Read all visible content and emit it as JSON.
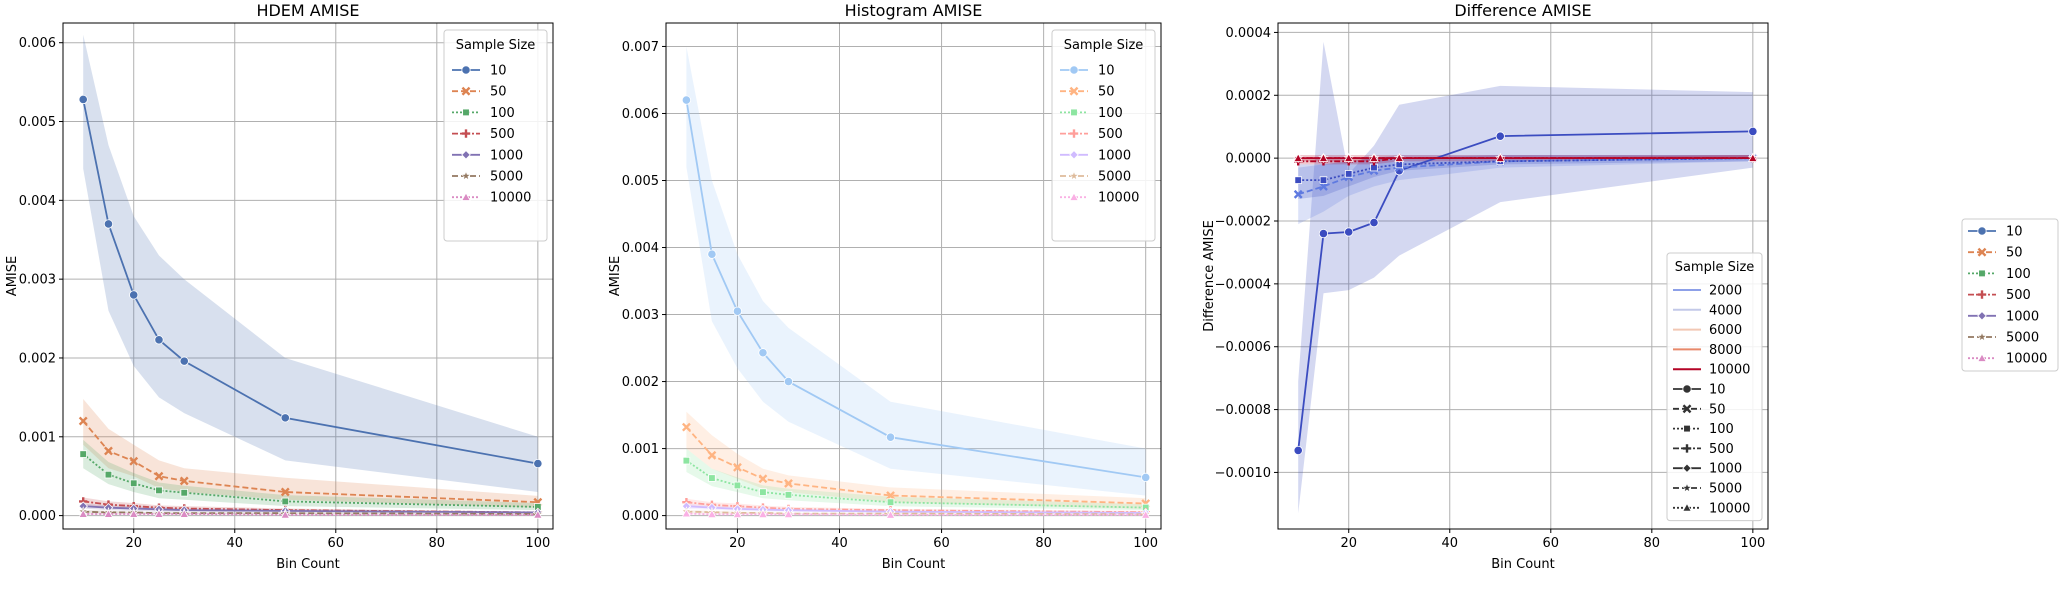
{
  "chart_data": [
    {
      "type": "line",
      "title": "HDEM AMISE",
      "xlabel": "Bin Count",
      "ylabel": "AMISE",
      "xlim": [
        6,
        103
      ],
      "ylim": [
        -0.00017,
        0.00625
      ],
      "xticks": [
        20,
        40,
        60,
        80,
        100
      ],
      "yticks": [
        0,
        0.001,
        0.002,
        0.003,
        0.004,
        0.005,
        0.006
      ],
      "ytick_labels": [
        "0.000",
        "0.001",
        "0.002",
        "0.003",
        "0.004",
        "0.005",
        "0.006"
      ],
      "grid": true,
      "legend": {
        "title": "Sample Size",
        "position": "top-right"
      },
      "x": [
        10,
        15,
        20,
        25,
        30,
        50,
        100
      ],
      "series": [
        {
          "name": "10",
          "color": "#4c72b0",
          "dash": "",
          "marker": "circle",
          "values": [
            0.00528,
            0.0037,
            0.0028,
            0.00223,
            0.00196,
            0.00124,
            0.00066
          ],
          "lower": [
            0.0044,
            0.0026,
            0.0019,
            0.0015,
            0.0013,
            0.0007,
            0.0003
          ],
          "upper": [
            0.0061,
            0.0047,
            0.0038,
            0.0033,
            0.003,
            0.002,
            0.001
          ]
        },
        {
          "name": "50",
          "color": "#dd8452",
          "dash": "6,3",
          "marker": "x",
          "values": [
            0.0012,
            0.00082,
            0.00069,
            0.0005,
            0.00044,
            0.0003,
            0.00017
          ],
          "lower": [
            0.0009,
            0.0006,
            0.0005,
            0.00035,
            0.0003,
            0.0002,
            0.0001
          ],
          "upper": [
            0.00148,
            0.0011,
            0.0009,
            0.0007,
            0.0006,
            0.00048,
            0.00025
          ]
        },
        {
          "name": "100",
          "color": "#55a868",
          "dash": "2,2",
          "marker": "square",
          "values": [
            0.00078,
            0.00052,
            0.00041,
            0.00032,
            0.00029,
            0.00018,
            0.00011
          ],
          "lower": [
            0.0006,
            0.0004,
            0.0003,
            0.00022,
            0.0002,
            0.00012,
            7e-05
          ],
          "upper": [
            0.00096,
            0.00068,
            0.00054,
            0.00042,
            0.00038,
            0.00026,
            0.00016
          ]
        },
        {
          "name": "500",
          "color": "#c44e52",
          "dash": "6,2,2,2",
          "marker": "plus",
          "values": [
            0.00018,
            0.00014,
            0.00012,
            0.0001,
            9e-05,
            7e-05,
            4e-05
          ],
          "lower": [
            0.00013,
            0.0001,
            8e-05,
            7e-05,
            6e-05,
            5e-05,
            3e-05
          ],
          "upper": [
            0.00023,
            0.00018,
            0.00016,
            0.00013,
            0.00012,
            9e-05,
            5e-05
          ]
        },
        {
          "name": "1000",
          "color": "#8172b3",
          "dash": "",
          "marker": "diamond",
          "values": [
            0.00012,
            0.0001,
            9e-05,
            8e-05,
            7e-05,
            6e-05,
            4e-05
          ],
          "lower": [
            9e-05,
            7e-05,
            6e-05,
            5e-05,
            5e-05,
            4e-05,
            3e-05
          ],
          "upper": [
            0.00015,
            0.00013,
            0.00012,
            0.00011,
            9e-05,
            8e-05,
            5e-05
          ]
        },
        {
          "name": "5000",
          "color": "#937860",
          "dash": "6,3",
          "marker": "star",
          "values": [
            5e-05,
            4e-05,
            4e-05,
            3e-05,
            3e-05,
            3e-05,
            2e-05
          ],
          "lower": [
            3e-05,
            3e-05,
            3e-05,
            2e-05,
            2e-05,
            2e-05,
            1e-05
          ],
          "upper": [
            7e-05,
            6e-05,
            5e-05,
            4e-05,
            4e-05,
            4e-05,
            3e-05
          ]
        },
        {
          "name": "10000",
          "color": "#da8bc3",
          "dash": "2,2",
          "marker": "triangle",
          "values": [
            2e-05,
            2e-05,
            2e-05,
            2e-05,
            2e-05,
            1e-05,
            1e-05
          ],
          "lower": [
            1e-05,
            1e-05,
            1e-05,
            1e-05,
            1e-05,
            1e-05,
            0.0
          ],
          "upper": [
            3e-05,
            3e-05,
            3e-05,
            3e-05,
            3e-05,
            2e-05,
            2e-05
          ]
        }
      ]
    },
    {
      "type": "line",
      "title": "Histogram AMISE",
      "xlabel": "Bin Count",
      "ylabel": "AMISE",
      "xlim": [
        6,
        103
      ],
      "ylim": [
        -0.0002,
        0.00735
      ],
      "xticks": [
        20,
        40,
        60,
        80,
        100
      ],
      "yticks": [
        0,
        0.001,
        0.002,
        0.003,
        0.004,
        0.005,
        0.006,
        0.007
      ],
      "ytick_labels": [
        "0.000",
        "0.001",
        "0.002",
        "0.003",
        "0.004",
        "0.005",
        "0.006",
        "0.007"
      ],
      "grid": true,
      "legend": {
        "title": "Sample Size",
        "position": "top-right"
      },
      "x": [
        10,
        15,
        20,
        25,
        30,
        50,
        100
      ],
      "series": [
        {
          "name": "10",
          "color": "#a1c9f4",
          "dash": "",
          "marker": "circle",
          "values": [
            0.0062,
            0.0039,
            0.00305,
            0.00243,
            0.002,
            0.00117,
            0.00057
          ],
          "lower": [
            0.0052,
            0.0029,
            0.0022,
            0.0017,
            0.0014,
            0.0007,
            0.0003
          ],
          "upper": [
            0.007,
            0.005,
            0.0039,
            0.0032,
            0.0028,
            0.0017,
            0.001
          ]
        },
        {
          "name": "50",
          "color": "#ffb482",
          "dash": "6,3",
          "marker": "x",
          "values": [
            0.00132,
            0.0009,
            0.00072,
            0.00055,
            0.00048,
            0.0003,
            0.00018
          ],
          "lower": [
            0.001,
            0.0007,
            0.00055,
            0.0004,
            0.00035,
            0.0002,
            0.0001
          ],
          "upper": [
            0.00155,
            0.0012,
            0.00092,
            0.0007,
            0.0006,
            0.00042,
            0.00026
          ]
        },
        {
          "name": "100",
          "color": "#8de5a1",
          "dash": "2,2",
          "marker": "square",
          "values": [
            0.00082,
            0.00056,
            0.00045,
            0.00035,
            0.00031,
            0.0002,
            0.00012
          ],
          "lower": [
            0.00065,
            0.00044,
            0.00035,
            0.00026,
            0.00023,
            0.00014,
            8e-05
          ],
          "upper": [
            0.001,
            0.0007,
            0.00057,
            0.00045,
            0.0004,
            0.00028,
            0.00017
          ]
        },
        {
          "name": "500",
          "color": "#ff9f9b",
          "dash": "6,2,2,2",
          "marker": "plus",
          "values": [
            0.0002,
            0.00016,
            0.00014,
            0.00012,
            0.0001,
            8e-05,
            5e-05
          ],
          "lower": [
            0.00015,
            0.00012,
            0.0001,
            9e-05,
            7e-05,
            6e-05,
            3e-05
          ],
          "upper": [
            0.00025,
            0.0002,
            0.00018,
            0.00015,
            0.00013,
            0.0001,
            7e-05
          ]
        },
        {
          "name": "1000",
          "color": "#d0bbff",
          "dash": "",
          "marker": "diamond",
          "values": [
            0.00014,
            0.00012,
            0.0001,
            9e-05,
            8e-05,
            6e-05,
            4e-05
          ],
          "lower": [
            0.0001,
            9e-05,
            7e-05,
            6e-05,
            6e-05,
            4e-05,
            3e-05
          ],
          "upper": [
            0.00018,
            0.00015,
            0.00013,
            0.00012,
            0.0001,
            8e-05,
            5e-05
          ]
        },
        {
          "name": "5000",
          "color": "#debb9b",
          "dash": "6,3",
          "marker": "star",
          "values": [
            6e-05,
            5e-05,
            4e-05,
            4e-05,
            3e-05,
            3e-05,
            2e-05
          ],
          "lower": [
            4e-05,
            3e-05,
            3e-05,
            3e-05,
            2e-05,
            2e-05,
            1e-05
          ],
          "upper": [
            8e-05,
            7e-05,
            6e-05,
            5e-05,
            4e-05,
            4e-05,
            3e-05
          ]
        },
        {
          "name": "10000",
          "color": "#fab0e4",
          "dash": "2,2",
          "marker": "triangle",
          "values": [
            3e-05,
            2e-05,
            2e-05,
            2e-05,
            2e-05,
            1e-05,
            1e-05
          ],
          "lower": [
            2e-05,
            1e-05,
            1e-05,
            1e-05,
            1e-05,
            1e-05,
            0.0
          ],
          "upper": [
            4e-05,
            3e-05,
            3e-05,
            3e-05,
            3e-05,
            2e-05,
            2e-05
          ]
        }
      ]
    },
    {
      "type": "line",
      "title": "Difference AMISE",
      "xlabel": "Bin Count",
      "ylabel": "Difference AMISE",
      "xlim": [
        6,
        103
      ],
      "ylim": [
        -0.00118,
        0.00043
      ],
      "xticks": [
        20,
        40,
        60,
        80,
        100
      ],
      "yticks": [
        -0.001,
        -0.0008,
        -0.0006,
        -0.0004,
        -0.0002,
        0,
        0.0002,
        0.0004
      ],
      "ytick_labels": [
        "−0.0010",
        "−0.0008",
        "−0.0006",
        "−0.0004",
        "−0.0002",
        "0.0000",
        "0.0002",
        "0.0004"
      ],
      "grid": true,
      "legend": {
        "title": "Sample Size",
        "position": "center-right",
        "hue_entries": [
          {
            "name": "2000",
            "color": "#8da0e8"
          },
          {
            "name": "4000",
            "color": "#c3c9e8"
          },
          {
            "name": "6000",
            "color": "#f2c8b4"
          },
          {
            "name": "8000",
            "color": "#e8896b"
          },
          {
            "name": "10000",
            "color": "#b40426"
          }
        ],
        "style_entries": [
          {
            "name": "10",
            "dash": "",
            "marker": "circle"
          },
          {
            "name": "50",
            "dash": "6,3",
            "marker": "x"
          },
          {
            "name": "100",
            "dash": "2,2",
            "marker": "square"
          },
          {
            "name": "500",
            "dash": "6,2,2,2",
            "marker": "plus"
          },
          {
            "name": "1000",
            "dash": "",
            "marker": "diamond"
          },
          {
            "name": "5000",
            "dash": "6,3",
            "marker": "star"
          },
          {
            "name": "10000",
            "dash": "2,2",
            "marker": "triangle"
          }
        ]
      },
      "x": [
        10,
        15,
        20,
        25,
        30,
        50,
        100
      ],
      "series": [
        {
          "name": "10",
          "color": "#3b4cc0",
          "dash": "",
          "marker": "circle",
          "values": [
            -0.00093,
            -0.00024,
            -0.000235,
            -0.000205,
            -4e-05,
            7e-05,
            8.5e-05
          ],
          "lower": [
            -0.00113,
            -0.00043,
            -0.00042,
            -0.00038,
            -0.00031,
            -0.00014,
            -3e-05
          ],
          "upper": [
            -0.00071,
            0.00037,
            -5e-05,
            4e-05,
            0.00017,
            0.00023,
            0.00021
          ]
        },
        {
          "name": "50",
          "color": "#5f7ae0",
          "dash": "6,3",
          "marker": "x",
          "values": [
            -0.000115,
            -9e-05,
            -6e-05,
            -4e-05,
            -3e-05,
            -1e-05,
            0.0
          ],
          "lower": [
            -0.00021,
            -0.00017,
            -0.00012,
            -9e-05,
            -7e-05,
            -3e-05,
            -1e-05
          ],
          "upper": [
            -3e-05,
            -2e-05,
            -1e-05,
            0.0,
            1e-05,
            1e-05,
            1e-05
          ]
        },
        {
          "name": "100",
          "color": "#3b4cc0",
          "dash": "2,2",
          "marker": "square",
          "values": [
            -7e-05,
            -7e-05,
            -5e-05,
            -3e-05,
            -2e-05,
            -1e-05,
            0.0
          ],
          "lower": [
            -0.00013,
            -0.00012,
            -9e-05,
            -6e-05,
            -4e-05,
            -2e-05,
            -1e-05
          ],
          "upper": [
            -2e-05,
            -2e-05,
            -1e-05,
            0.0,
            0.0,
            1e-05,
            1e-05
          ]
        },
        {
          "name": "500",
          "color": "#b40426",
          "dash": "6,2,2,2",
          "marker": "plus",
          "values": [
            -1e-05,
            -1e-05,
            -1e-05,
            -1e-05,
            0.0,
            0.0,
            0.0
          ],
          "lower": [
            -2e-05,
            -2e-05,
            -2e-05,
            -2e-05,
            -1e-05,
            -1e-05,
            0.0
          ],
          "upper": [
            0.0,
            0.0,
            0.0,
            0.0,
            0.0,
            0.0,
            1e-05
          ]
        },
        {
          "name": "1000",
          "color": "#b40426",
          "dash": "",
          "marker": "diamond",
          "values": [
            0.0,
            0.0,
            0.0,
            0.0,
            0.0,
            0.0,
            0.0
          ],
          "lower": [
            -1e-05,
            -1e-05,
            -1e-05,
            -1e-05,
            0.0,
            0.0,
            0.0
          ],
          "upper": [
            1e-05,
            1e-05,
            1e-05,
            1e-05,
            1e-05,
            1e-05,
            1e-05
          ]
        },
        {
          "name": "5000",
          "color": "#b40426",
          "dash": "6,3",
          "marker": "star",
          "values": [
            0.0,
            0.0,
            0.0,
            0.0,
            0.0,
            0.0,
            0.0
          ],
          "lower": [
            0.0,
            0.0,
            0.0,
            0.0,
            0.0,
            0.0,
            0.0
          ],
          "upper": [
            0.0,
            0.0,
            0.0,
            0.0,
            0.0,
            0.0,
            0.0
          ]
        },
        {
          "name": "10000",
          "color": "#b40426",
          "dash": "2,2",
          "marker": "triangle",
          "values": [
            0.0,
            0.0,
            0.0,
            0.0,
            0.0,
            0.0,
            0.0
          ],
          "lower": [
            0.0,
            0.0,
            0.0,
            0.0,
            0.0,
            0.0,
            0.0
          ],
          "upper": [
            0.0,
            0.0,
            0.0,
            0.0,
            0.0,
            0.0,
            0.0
          ]
        }
      ]
    }
  ],
  "figure_legend": {
    "position": "right",
    "entries": [
      {
        "name": "10",
        "color": "#4c72b0",
        "dash": "",
        "marker": "circle"
      },
      {
        "name": "50",
        "color": "#dd8452",
        "dash": "6,3",
        "marker": "x"
      },
      {
        "name": "100",
        "color": "#55a868",
        "dash": "2,2",
        "marker": "square"
      },
      {
        "name": "500",
        "color": "#c44e52",
        "dash": "6,2,2,2",
        "marker": "plus"
      },
      {
        "name": "1000",
        "color": "#8172b3",
        "dash": "",
        "marker": "diamond"
      },
      {
        "name": "5000",
        "color": "#937860",
        "dash": "6,3",
        "marker": "star"
      },
      {
        "name": "10000",
        "color": "#da8bc3",
        "dash": "2,2",
        "marker": "triangle"
      }
    ]
  }
}
